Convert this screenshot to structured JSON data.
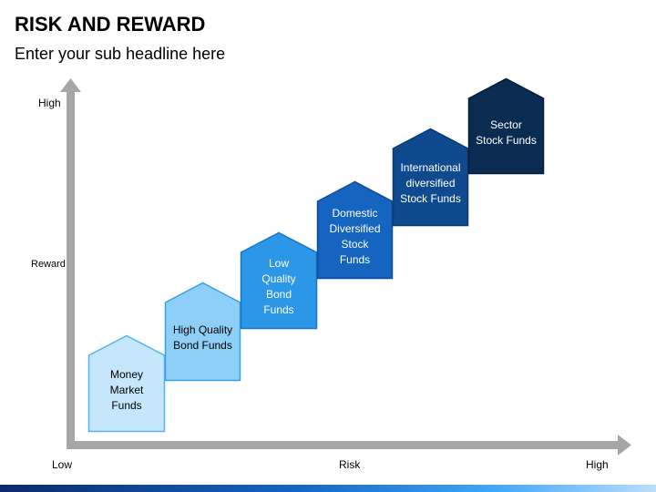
{
  "header": {
    "title": "RISK AND REWARD",
    "subtitle": "Enter your sub headline here"
  },
  "axes": {
    "y_high": "High",
    "y_mid": "Reward",
    "x_low": "Low",
    "x_mid": "Risk",
    "x_high": "High",
    "color": "#a6a6a6"
  },
  "steps": [
    {
      "lines": [
        "Money",
        "Market",
        "Funds"
      ],
      "fill": "#c5e6fb",
      "stroke": "#55b4f0",
      "text_color": "#000000"
    },
    {
      "lines": [
        "High Quality",
        "Bond Funds"
      ],
      "fill": "#8ecff7",
      "stroke": "#3a9fe6",
      "text_color": "#000000"
    },
    {
      "lines": [
        "Low",
        "Quality",
        "Bond",
        "Funds"
      ],
      "fill": "#2b97e6",
      "stroke": "#1a75c7",
      "text_color": "#ffffff"
    },
    {
      "lines": [
        "Domestic",
        "Diversified",
        "Stock",
        "Funds"
      ],
      "fill": "#1565c0",
      "stroke": "#0d4d9a",
      "text_color": "#ffffff"
    },
    {
      "lines": [
        "International",
        "diversified",
        "Stock Funds"
      ],
      "fill": "#0f4a8e",
      "stroke": "#0a3870",
      "text_color": "#ffffff"
    },
    {
      "lines": [
        "Sector",
        "Stock Funds"
      ],
      "fill": "#0b2c52",
      "stroke": "#061c37",
      "text_color": "#ffffff"
    }
  ]
}
